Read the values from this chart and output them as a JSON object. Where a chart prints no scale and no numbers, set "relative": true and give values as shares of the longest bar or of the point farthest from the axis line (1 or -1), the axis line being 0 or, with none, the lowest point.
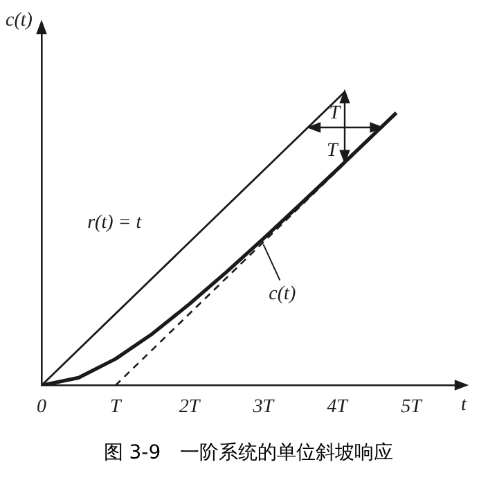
{
  "chart_data": {
    "type": "line",
    "relative": true,
    "xlabel": "t",
    "ylabel": "c(t)",
    "xlim": [
      0,
      5.6
    ],
    "xticks": [
      0,
      {
        "value": 1,
        "label": "T"
      },
      {
        "value": 2,
        "label": "2T"
      },
      {
        "value": 3,
        "label": "3T"
      },
      {
        "value": 4,
        "label": "4T"
      },
      {
        "value": 5,
        "label": "5T"
      }
    ],
    "series": [
      {
        "name": "r(t) = t",
        "color": "#1a1a1a",
        "x": [
          0,
          4.1
        ],
        "values": [
          0,
          1
        ]
      },
      {
        "name": "c(t)",
        "color": "#1a1a1a",
        "x": [
          0,
          0.5,
          1,
          1.5,
          2,
          2.5,
          3,
          3.5,
          4,
          4.8
        ],
        "values": [
          0,
          0.026,
          0.09,
          0.176,
          0.277,
          0.386,
          0.5,
          0.617,
          0.736,
          0.929
        ]
      },
      {
        "color": "#1a1a1a",
        "x": [
          1,
          4.8
        ],
        "values": [
          0,
          0.927
        ],
        "line_style": "dashed"
      }
    ],
    "annotations": [
      "T",
      "T",
      "图 3-9　一阶系统的单位斜坡响应"
    ],
    "grid": false,
    "marker": "none"
  }
}
